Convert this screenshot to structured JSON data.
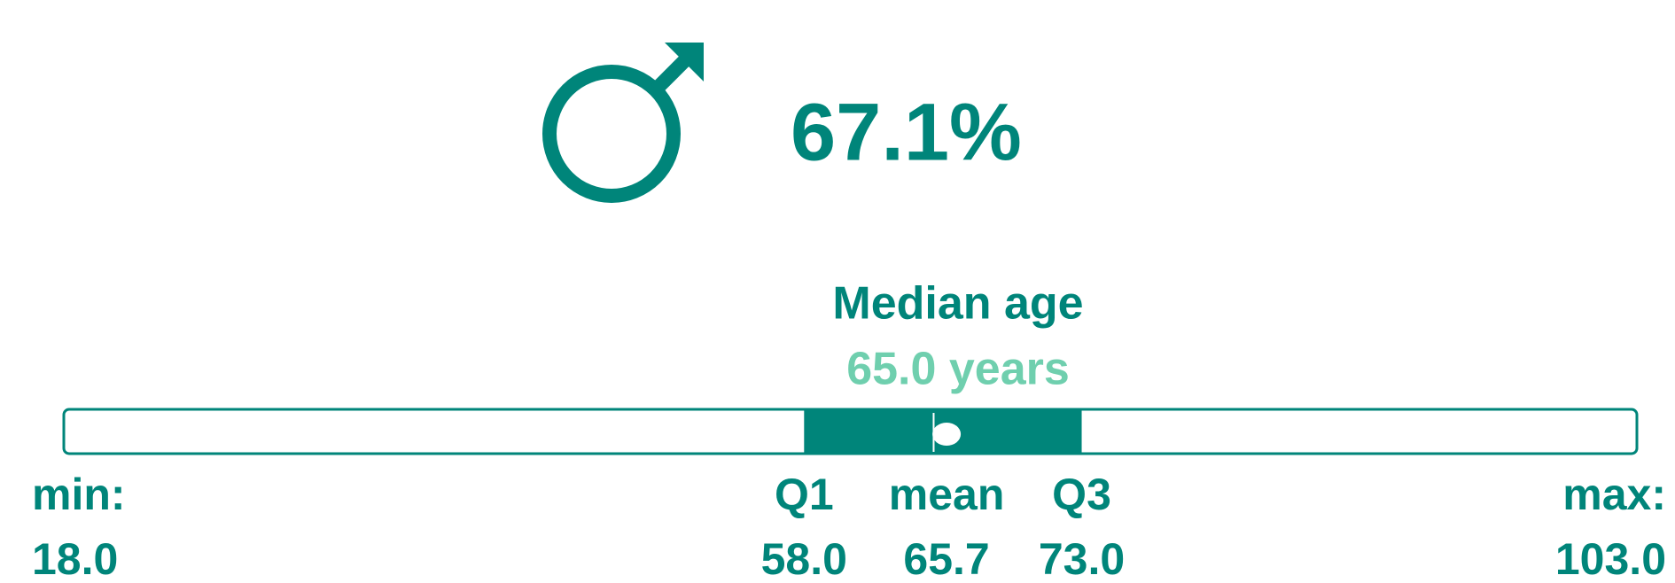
{
  "chart_data": {
    "type": "boxplot",
    "share": {
      "value": 67.1,
      "label": "67.1%"
    },
    "title": "Median age",
    "median": {
      "value": 65,
      "label": "65.0 years"
    },
    "xlim": [
      18,
      103
    ],
    "stats": [
      {
        "name": "min:",
        "value": 18,
        "label": "18.0"
      },
      {
        "name": "Q1",
        "value": 58,
        "label": "58.0"
      },
      {
        "name": "mean",
        "value": 65.7,
        "label": "65.7"
      },
      {
        "name": "Q3",
        "value": 73,
        "label": "73.0"
      },
      {
        "name": "max:",
        "value": 103,
        "label": "103.0"
      }
    ],
    "color": "#00857a",
    "accent": "#6fcfae"
  }
}
